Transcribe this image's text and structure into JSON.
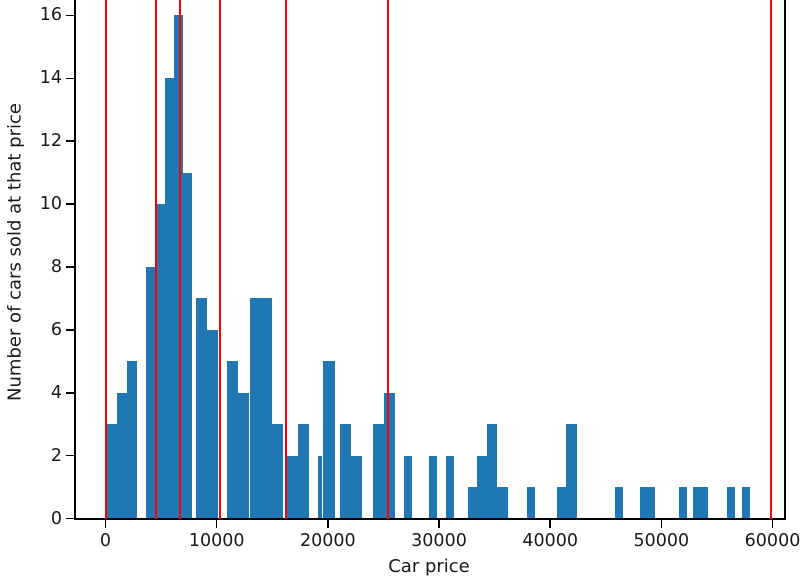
{
  "chart_data": {
    "type": "bar",
    "subtype": "histogram",
    "title": "",
    "xlabel": "Car price",
    "ylabel": "Number of cars sold at that price",
    "x_ticks": [
      0,
      10000,
      20000,
      30000,
      40000,
      50000,
      60000
    ],
    "y_ticks": [
      0,
      2,
      4,
      6,
      8,
      10,
      12,
      14,
      16
    ],
    "xlim": [
      -2750,
      61100
    ],
    "ylim_visible_top": 16.5,
    "grid": false,
    "legend": null,
    "bar_color": "#1f77b4",
    "vline_color": "#ff0000",
    "bars": [
      {
        "from": 150,
        "to": 1050,
        "count": 3
      },
      {
        "from": 1050,
        "to": 1950,
        "count": 4
      },
      {
        "from": 1950,
        "to": 2850,
        "count": 5
      },
      {
        "from": 3650,
        "to": 4550,
        "count": 8
      },
      {
        "from": 4550,
        "to": 5350,
        "count": 10
      },
      {
        "from": 5350,
        "to": 6160,
        "count": 14
      },
      {
        "from": 6160,
        "to": 6970,
        "count": 16
      },
      {
        "from": 6970,
        "to": 7780,
        "count": 11
      },
      {
        "from": 8140,
        "to": 9130,
        "count": 7
      },
      {
        "from": 9130,
        "to": 10120,
        "count": 6
      },
      {
        "from": 10930,
        "to": 11920,
        "count": 5
      },
      {
        "from": 11920,
        "to": 12910,
        "count": 4
      },
      {
        "from": 13000,
        "to": 13990,
        "count": 7
      },
      {
        "from": 13990,
        "to": 14980,
        "count": 7
      },
      {
        "from": 14980,
        "to": 15970,
        "count": 3
      },
      {
        "from": 16330,
        "to": 17320,
        "count": 2
      },
      {
        "from": 17320,
        "to": 18310,
        "count": 3
      },
      {
        "from": 19110,
        "to": 19470,
        "count": 2
      },
      {
        "from": 19560,
        "to": 20640,
        "count": 5
      },
      {
        "from": 21100,
        "to": 22090,
        "count": 3
      },
      {
        "from": 22090,
        "to": 23080,
        "count": 2
      },
      {
        "from": 24060,
        "to": 25050,
        "count": 3
      },
      {
        "from": 25050,
        "to": 26040,
        "count": 4
      },
      {
        "from": 26850,
        "to": 27570,
        "count": 2
      },
      {
        "from": 29100,
        "to": 29820,
        "count": 2
      },
      {
        "from": 30630,
        "to": 31350,
        "count": 2
      },
      {
        "from": 32610,
        "to": 33420,
        "count": 1
      },
      {
        "from": 33420,
        "to": 34320,
        "count": 2
      },
      {
        "from": 34320,
        "to": 35220,
        "count": 3
      },
      {
        "from": 35220,
        "to": 36210,
        "count": 1
      },
      {
        "from": 37920,
        "to": 38640,
        "count": 1
      },
      {
        "from": 40620,
        "to": 41430,
        "count": 1
      },
      {
        "from": 41430,
        "to": 42420,
        "count": 3
      },
      {
        "from": 45840,
        "to": 46560,
        "count": 1
      },
      {
        "from": 48090,
        "to": 49440,
        "count": 1
      },
      {
        "from": 51600,
        "to": 52320,
        "count": 1
      },
      {
        "from": 52860,
        "to": 54210,
        "count": 1
      },
      {
        "from": 55920,
        "to": 56640,
        "count": 1
      },
      {
        "from": 57270,
        "to": 57990,
        "count": 1
      }
    ],
    "vlines": [
      50,
      4540,
      6700,
      10300,
      16240,
      25410,
      59870
    ]
  }
}
